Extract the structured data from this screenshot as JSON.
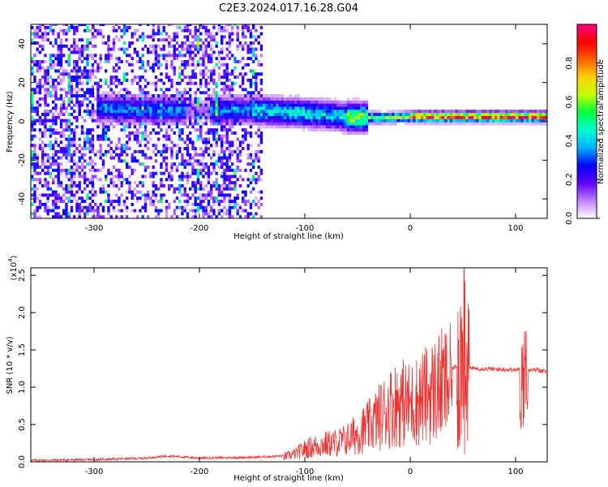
{
  "figure": {
    "title": "C2E3.2024.017.16.28.G04"
  },
  "chart_data": [
    {
      "type": "heatmap",
      "title": "C2E3.2024.017.16.28.G04",
      "xlabel": "Height of straight line (km)",
      "ylabel": "Frequency (Hz)",
      "xlim": [
        -360,
        130
      ],
      "ylim": [
        -50,
        50
      ],
      "x_ticks": [
        -300,
        -200,
        -100,
        0,
        100
      ],
      "x_tick_labels": [
        "-300",
        "-200",
        "-100",
        "0",
        "100"
      ],
      "y_ticks": [
        -40,
        -20,
        0,
        20,
        40
      ],
      "y_tick_labels": [
        "-40",
        "-20",
        "0",
        "20",
        "40"
      ],
      "colorbar": {
        "label": "Normalized spectral amplitude",
        "range": [
          0,
          1
        ],
        "ticks": [
          "0.0",
          "0.2",
          "0.4",
          "0.6",
          "0.8"
        ],
        "colors": [
          "#ffffff",
          "#c080ff",
          "#6000ff",
          "#0000ff",
          "#00b0ff",
          "#00ffd0",
          "#00ff40",
          "#c0ff00",
          "#ffd000",
          "#ff6000",
          "#ff0000",
          "#ff0080"
        ]
      },
      "signal_center_hz": [
        [
          -290,
          6
        ],
        [
          -260,
          5
        ],
        [
          -230,
          5
        ],
        [
          -180,
          5
        ],
        [
          -150,
          5
        ],
        [
          -120,
          4
        ],
        [
          -90,
          3
        ],
        [
          -60,
          1.5
        ],
        [
          -30,
          1
        ],
        [
          0,
          1.5
        ],
        [
          30,
          1.5
        ],
        [
          60,
          1.5
        ],
        [
          90,
          1.5
        ],
        [
          130,
          1.5
        ]
      ],
      "noise_extent_km": [
        -360,
        -140
      ],
      "grid": false
    },
    {
      "type": "line",
      "xlabel": "Height of straight line (km)",
      "ylabel": "SNR (10 * v/v)",
      "y_scale_label": "(x10",
      "y_scale_exponent": "4",
      "y_multiplier": 10000,
      "xlim": [
        -360,
        130
      ],
      "ylim": [
        0,
        2.6
      ],
      "x_ticks": [
        -300,
        -200,
        -100,
        0,
        100
      ],
      "x_tick_labels": [
        "-300",
        "-200",
        "-100",
        "0",
        "100"
      ],
      "y_ticks": [
        0,
        0.5,
        1.0,
        1.5,
        2.0,
        2.5
      ],
      "y_tick_labels": [
        "0.0",
        "0.5",
        "1.0",
        "1.5",
        "2.0",
        "2.5"
      ],
      "line_color": "#ee3333",
      "series": [
        {
          "x": [
            -360,
            -300,
            -250,
            -230,
            -200,
            -150,
            -120,
            -110,
            -100,
            -90,
            -80,
            -70,
            -60,
            -50,
            -40,
            -30,
            -20,
            -10,
            0,
            10,
            20,
            30,
            40,
            45,
            50,
            55,
            60,
            70,
            80,
            90,
            100,
            105,
            108,
            110,
            115,
            120,
            130
          ],
          "values": [
            0.02,
            0.03,
            0.05,
            0.08,
            0.05,
            0.06,
            0.08,
            0.12,
            0.2,
            0.25,
            0.28,
            0.3,
            0.35,
            0.45,
            0.55,
            0.7,
            0.85,
            0.95,
            0.9,
            1.0,
            1.1,
            1.2,
            1.25,
            1.3,
            1.28,
            1.26,
            1.25,
            1.25,
            1.24,
            1.24,
            1.23,
            1.24,
            1.4,
            1.25,
            1.22,
            1.24,
            1.2
          ]
        }
      ],
      "grid": false
    }
  ]
}
